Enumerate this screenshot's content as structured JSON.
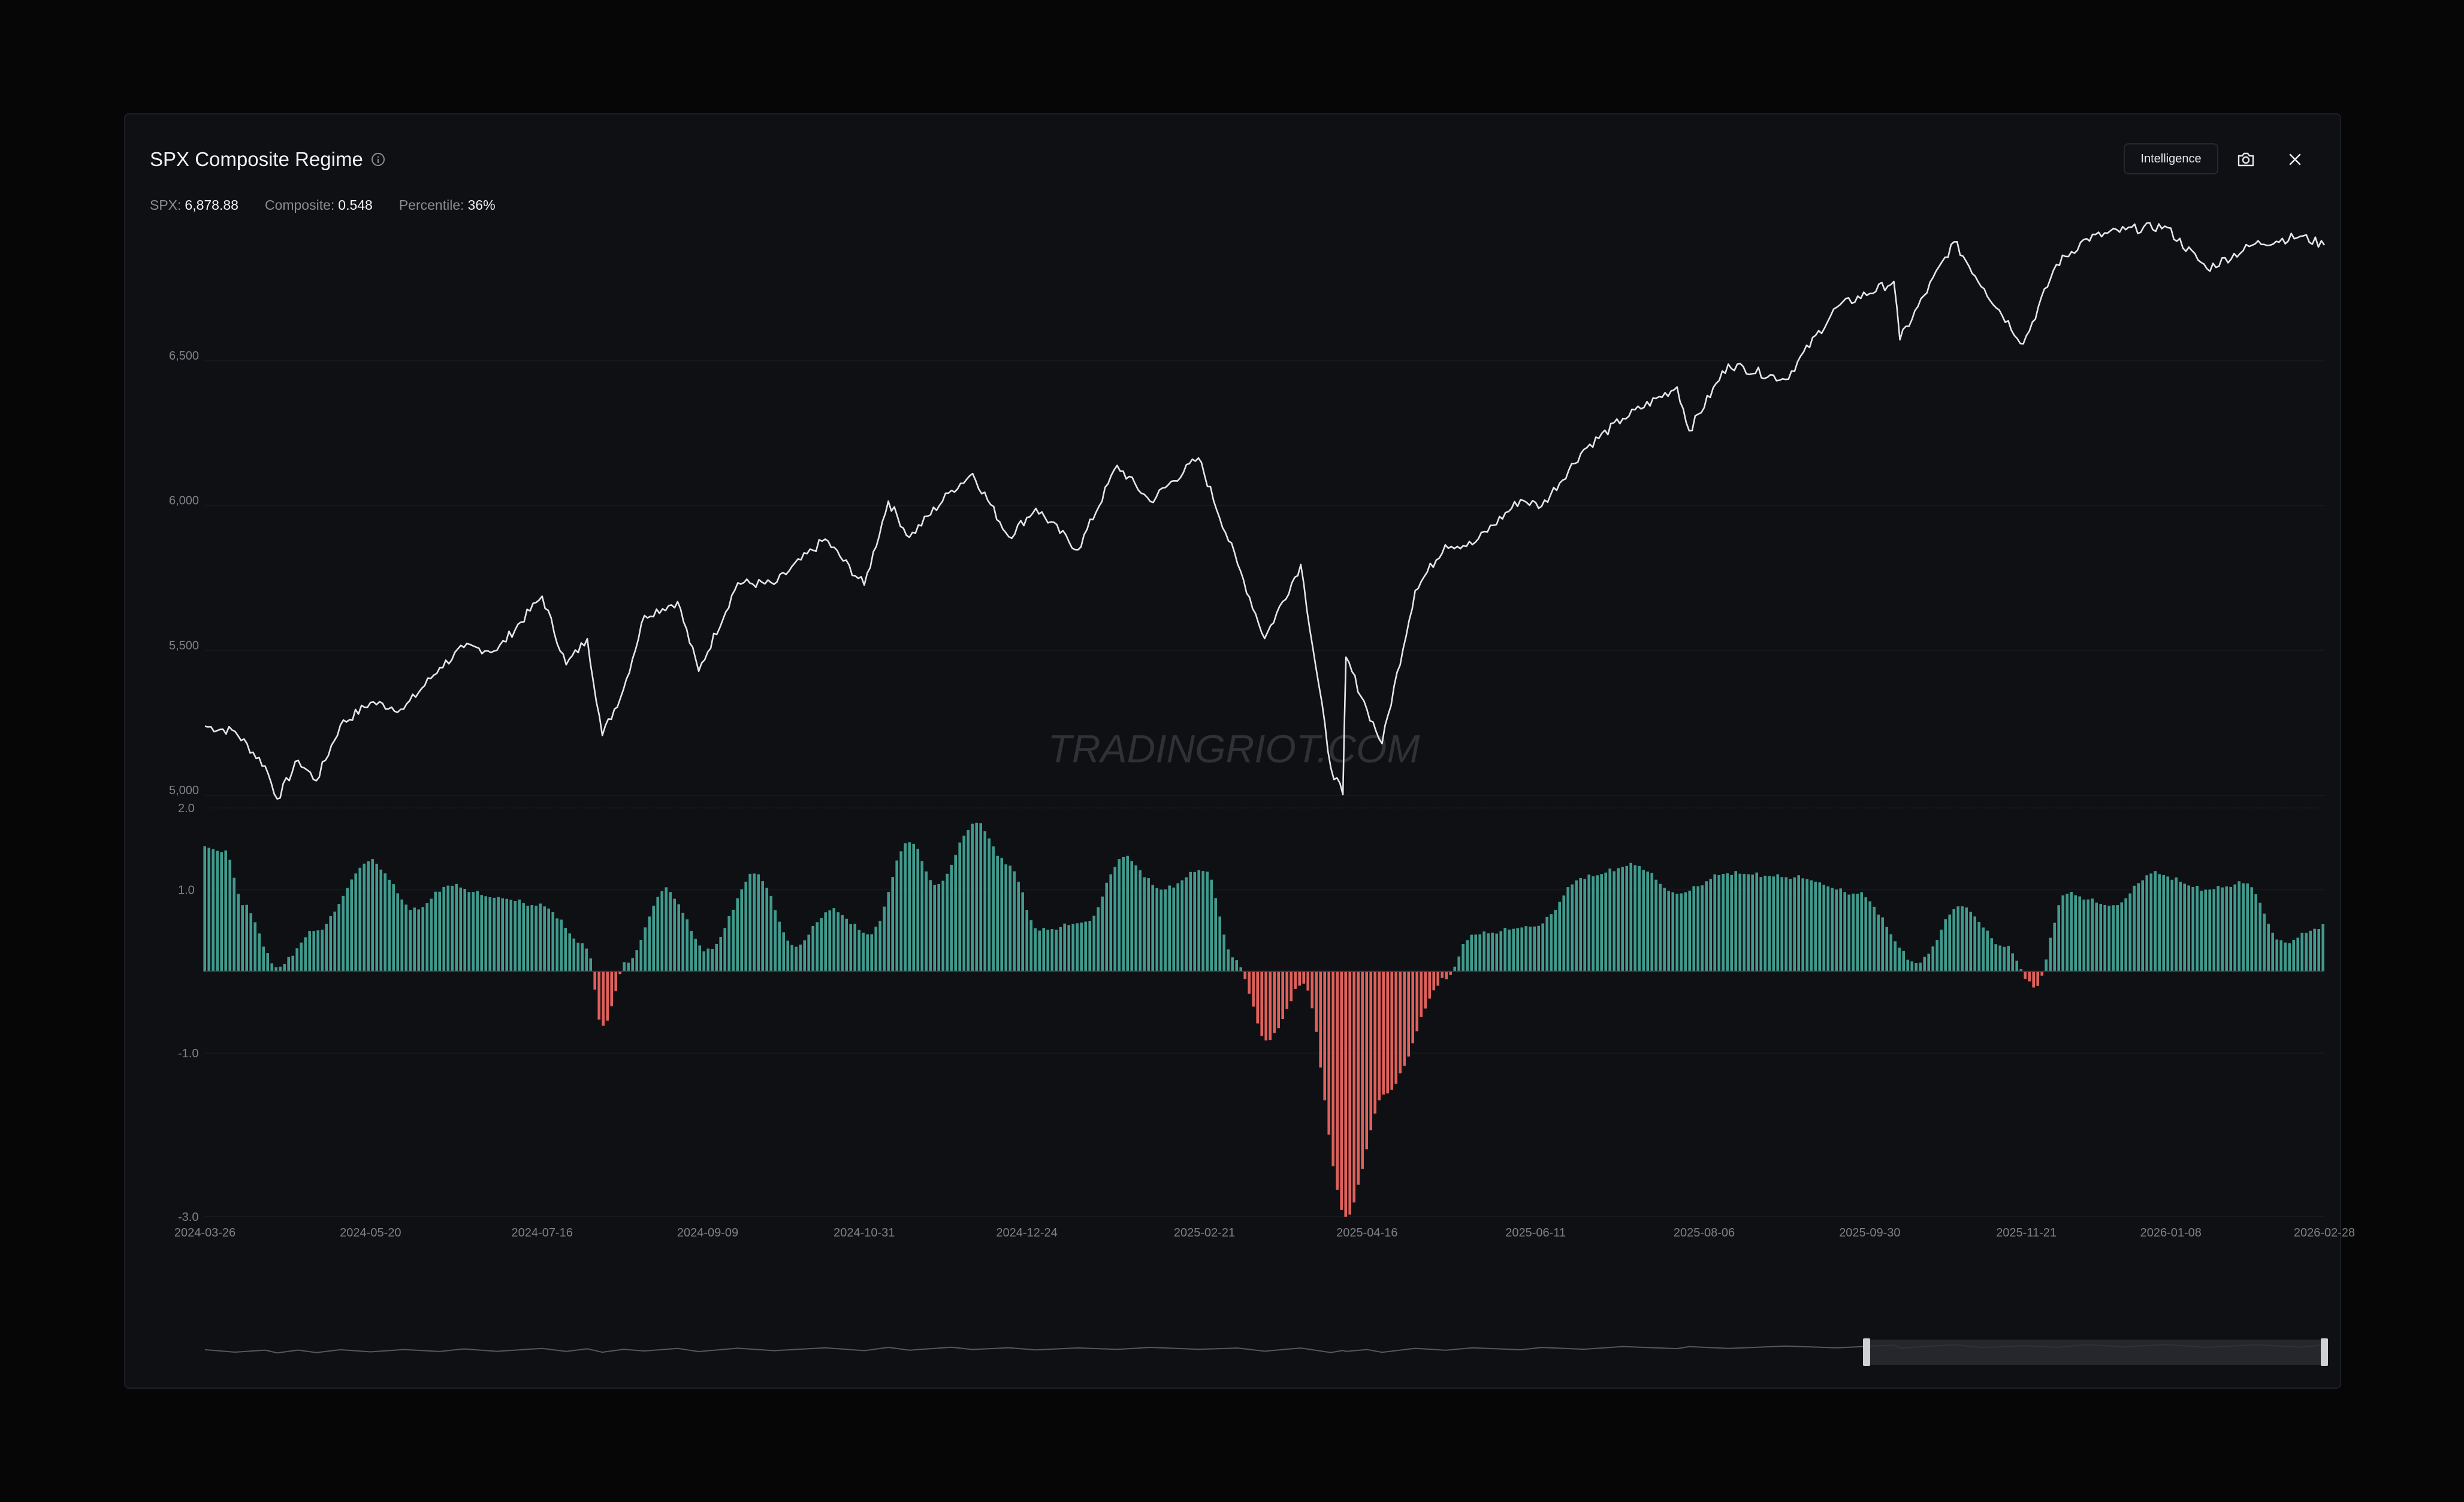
{
  "header": {
    "title": "SPX Composite Regime",
    "intelligence_label": "Intelligence"
  },
  "stats": {
    "spx_label": "SPX:",
    "spx_value": "6,878.88",
    "composite_label": "Composite:",
    "composite_value": "0.548",
    "percentile_label": "Percentile:",
    "percentile_value": "36%"
  },
  "watermark": "TRADINGRIOT.COM",
  "icons": {
    "info": "info-icon",
    "camera": "camera-icon",
    "close": "close-icon"
  },
  "colors": {
    "background": "#0f1014",
    "price_line": "#e6e6e6",
    "positive_bar": "#3f9b8d",
    "negative_bar": "#e0605a",
    "axis_text": "#7e8189"
  },
  "chart_data": [
    {
      "type": "line",
      "series": [
        {
          "name": "SPX",
          "values": [
            {
              "x": "2024-03-26",
              "y": 5218
            },
            {
              "x": "2024-04-05",
              "y": 5200
            },
            {
              "x": "2024-04-15",
              "y": 5080
            },
            {
              "x": "2024-04-19",
              "y": 4967
            },
            {
              "x": "2024-04-26",
              "y": 5100
            },
            {
              "x": "2024-05-02",
              "y": 5030
            },
            {
              "x": "2024-05-10",
              "y": 5222
            },
            {
              "x": "2024-05-20",
              "y": 5300
            },
            {
              "x": "2024-05-31",
              "y": 5277
            },
            {
              "x": "2024-06-12",
              "y": 5420
            },
            {
              "x": "2024-06-20",
              "y": 5490
            },
            {
              "x": "2024-07-01",
              "y": 5480
            },
            {
              "x": "2024-07-16",
              "y": 5667
            },
            {
              "x": "2024-07-24",
              "y": 5430
            },
            {
              "x": "2024-07-31",
              "y": 5520
            },
            {
              "x": "2024-08-05",
              "y": 5186
            },
            {
              "x": "2024-08-12",
              "y": 5345
            },
            {
              "x": "2024-08-19",
              "y": 5600
            },
            {
              "x": "2024-08-30",
              "y": 5648
            },
            {
              "x": "2024-09-06",
              "y": 5408
            },
            {
              "x": "2024-09-19",
              "y": 5713
            },
            {
              "x": "2024-10-01",
              "y": 5708
            },
            {
              "x": "2024-10-18",
              "y": 5864
            },
            {
              "x": "2024-10-31",
              "y": 5705
            },
            {
              "x": "2024-11-08",
              "y": 5995
            },
            {
              "x": "2024-11-15",
              "y": 5870
            },
            {
              "x": "2024-11-29",
              "y": 6032
            },
            {
              "x": "2024-12-06",
              "y": 6090
            },
            {
              "x": "2024-12-18",
              "y": 5872
            },
            {
              "x": "2024-12-27",
              "y": 5970
            },
            {
              "x": "2025-01-10",
              "y": 5827
            },
            {
              "x": "2025-01-23",
              "y": 6118
            },
            {
              "x": "2025-02-03",
              "y": 5994
            },
            {
              "x": "2025-02-19",
              "y": 6144
            },
            {
              "x": "2025-03-04",
              "y": 5778
            },
            {
              "x": "2025-03-13",
              "y": 5521
            },
            {
              "x": "2025-03-25",
              "y": 5776
            },
            {
              "x": "2025-04-04",
              "y": 5074
            },
            {
              "x": "2025-04-08",
              "y": 4982
            },
            {
              "x": "2025-04-09",
              "y": 5456
            },
            {
              "x": "2025-04-16",
              "y": 5275
            },
            {
              "x": "2025-04-21",
              "y": 5158
            },
            {
              "x": "2025-05-02",
              "y": 5686
            },
            {
              "x": "2025-05-12",
              "y": 5844
            },
            {
              "x": "2025-05-21",
              "y": 5845
            },
            {
              "x": "2025-06-06",
              "y": 6000
            },
            {
              "x": "2025-06-13",
              "y": 5977
            },
            {
              "x": "2025-06-27",
              "y": 6173
            },
            {
              "x": "2025-07-10",
              "y": 6280
            },
            {
              "x": "2025-07-28",
              "y": 6389
            },
            {
              "x": "2025-08-01",
              "y": 6238
            },
            {
              "x": "2025-08-14",
              "y": 6468
            },
            {
              "x": "2025-09-02",
              "y": 6415
            },
            {
              "x": "2025-09-19",
              "y": 6664
            },
            {
              "x": "2025-10-08",
              "y": 6753
            },
            {
              "x": "2025-10-10",
              "y": 6552
            },
            {
              "x": "2025-10-28",
              "y": 6890
            },
            {
              "x": "2025-11-07",
              "y": 6728
            },
            {
              "x": "2025-11-20",
              "y": 6538
            },
            {
              "x": "2025-12-01",
              "y": 6812
            },
            {
              "x": "2025-12-11",
              "y": 6901
            },
            {
              "x": "2025-12-24",
              "y": 6932
            },
            {
              "x": "2026-01-06",
              "y": 6944
            },
            {
              "x": "2026-01-20",
              "y": 6797
            },
            {
              "x": "2026-02-05",
              "y": 6883
            },
            {
              "x": "2026-02-20",
              "y": 6909
            },
            {
              "x": "2026-02-28",
              "y": 6878.88
            }
          ]
        }
      ],
      "yticks": [
        "5,000",
        "5,500",
        "6,000",
        "6,500"
      ]
    },
    {
      "type": "bar",
      "series": [
        {
          "name": "Composite",
          "anchors": [
            {
              "x": "2024-03-26",
              "y": 1.52
            },
            {
              "x": "2024-04-02",
              "y": 1.45
            },
            {
              "x": "2024-04-08",
              "y": 0.8
            },
            {
              "x": "2024-04-19",
              "y": 0.05
            },
            {
              "x": "2024-05-02",
              "y": 0.5
            },
            {
              "x": "2024-05-20",
              "y": 1.35
            },
            {
              "x": "2024-06-04",
              "y": 0.75
            },
            {
              "x": "2024-06-15",
              "y": 1.05
            },
            {
              "x": "2024-07-01",
              "y": 0.9
            },
            {
              "x": "2024-07-16",
              "y": 0.8
            },
            {
              "x": "2024-07-31",
              "y": 0.3
            },
            {
              "x": "2024-08-05",
              "y": -0.7
            },
            {
              "x": "2024-08-13",
              "y": 0.1
            },
            {
              "x": "2024-08-26",
              "y": 1.0
            },
            {
              "x": "2024-09-09",
              "y": 0.25
            },
            {
              "x": "2024-09-25",
              "y": 1.2
            },
            {
              "x": "2024-10-08",
              "y": 0.3
            },
            {
              "x": "2024-10-20",
              "y": 0.75
            },
            {
              "x": "2024-11-02",
              "y": 0.45
            },
            {
              "x": "2024-11-15",
              "y": 1.6
            },
            {
              "x": "2024-11-24",
              "y": 1.05
            },
            {
              "x": "2024-12-07",
              "y": 1.82
            },
            {
              "x": "2024-12-18",
              "y": 1.3
            },
            {
              "x": "2024-12-28",
              "y": 0.5
            },
            {
              "x": "2025-01-13",
              "y": 0.6
            },
            {
              "x": "2025-01-25",
              "y": 1.4
            },
            {
              "x": "2025-02-07",
              "y": 1.0
            },
            {
              "x": "2025-02-21",
              "y": 1.25
            },
            {
              "x": "2025-03-03",
              "y": 0.15
            },
            {
              "x": "2025-03-14",
              "y": -0.85
            },
            {
              "x": "2025-03-26",
              "y": -0.15
            },
            {
              "x": "2025-04-09",
              "y": -3.0
            },
            {
              "x": "2025-04-22",
              "y": -1.5
            },
            {
              "x": "2025-05-12",
              "y": -0.1
            },
            {
              "x": "2025-05-21",
              "y": 0.45
            },
            {
              "x": "2025-06-11",
              "y": 0.55
            },
            {
              "x": "2025-06-27",
              "y": 1.15
            },
            {
              "x": "2025-07-14",
              "y": 1.3
            },
            {
              "x": "2025-07-28",
              "y": 0.95
            },
            {
              "x": "2025-08-14",
              "y": 1.2
            },
            {
              "x": "2025-09-05",
              "y": 1.15
            },
            {
              "x": "2025-09-26",
              "y": 0.95
            },
            {
              "x": "2025-10-16",
              "y": 0.1
            },
            {
              "x": "2025-10-30",
              "y": 0.8
            },
            {
              "x": "2025-11-14",
              "y": 0.3
            },
            {
              "x": "2025-11-24",
              "y": -0.2
            },
            {
              "x": "2025-12-04",
              "y": 0.95
            },
            {
              "x": "2025-12-20",
              "y": 0.8
            },
            {
              "x": "2026-01-02",
              "y": 1.2
            },
            {
              "x": "2026-01-20",
              "y": 1.0
            },
            {
              "x": "2026-02-02",
              "y": 1.08
            },
            {
              "x": "2026-02-14",
              "y": 0.35
            },
            {
              "x": "2026-02-28",
              "y": 0.548
            }
          ]
        }
      ],
      "yticks": [
        "2.0",
        "1.0",
        "-1.0",
        "-3.0"
      ],
      "ylim": [
        -3.0,
        2.0
      ],
      "xticks": [
        "2024-03-26",
        "2024-05-20",
        "2024-07-16",
        "2024-09-09",
        "2024-10-31",
        "2024-12-24",
        "2025-02-21",
        "2025-04-16",
        "2025-06-11",
        "2025-08-06",
        "2025-09-30",
        "2025-11-21",
        "2026-01-08",
        "2026-02-28"
      ]
    }
  ]
}
